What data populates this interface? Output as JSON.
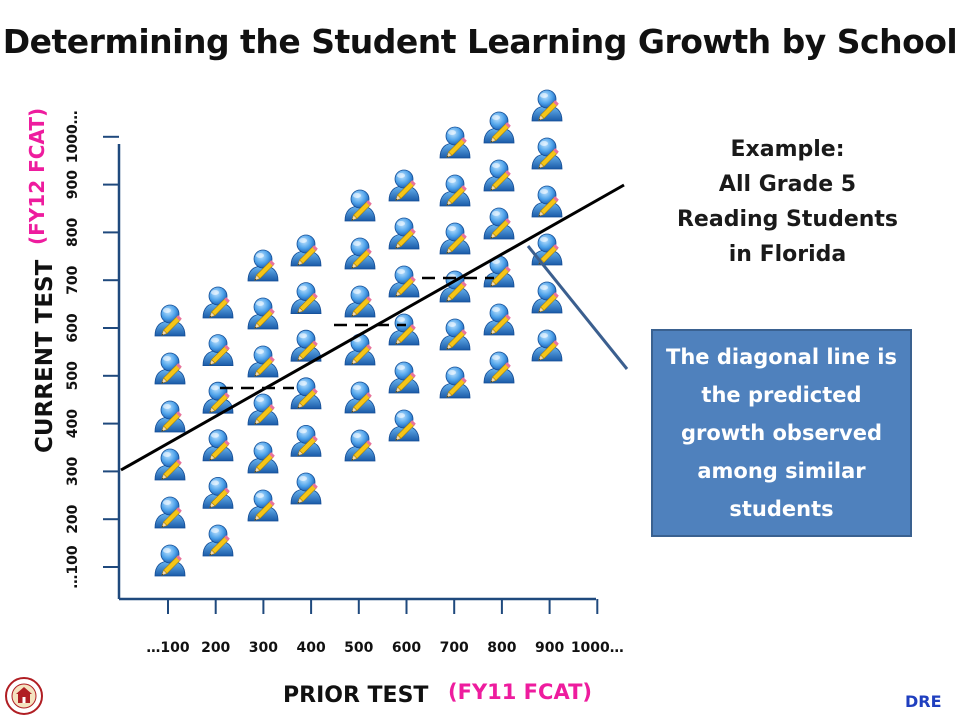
{
  "title": "Determining the Student Learning Growth by School",
  "example": {
    "line1": "Example:",
    "line2": "All Grade 5",
    "line3": "Reading Students",
    "line4": "in Florida"
  },
  "callout": "The diagonal line is the predicted growth observed among similar students",
  "x_axis": {
    "label": "PRIOR TEST",
    "sublabel": "(FY11 FCAT)",
    "ticks": [
      "…100",
      "200",
      "300",
      "400",
      "500",
      "600",
      "700",
      "800",
      "900",
      "1000…"
    ]
  },
  "y_axis": {
    "label": "CURRENT TEST",
    "sublabel": "(FY12  FCAT)",
    "ticks": [
      "…100",
      "200",
      "300",
      "400",
      "500",
      "600",
      "700",
      "800",
      "900",
      "1000…"
    ]
  },
  "footer": {
    "badge": "DRE"
  },
  "colors": {
    "callout_bg": "#4f81bd",
    "accent_pink": "#ee1c9e",
    "dre_blue": "#1f3fbf",
    "student_icon": "#2d7fd6"
  },
  "icons": {
    "student": "student-pencil-icon",
    "logo": "school-district-logo"
  }
}
